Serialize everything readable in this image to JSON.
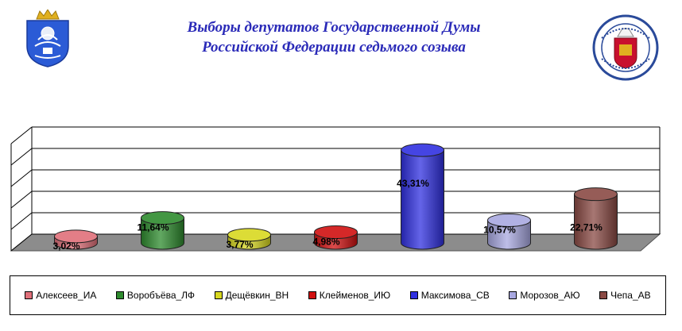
{
  "header": {
    "title_line1": "Выборы депутатов Государственной Думы",
    "title_line2": "Российской Федерации седьмого созыва"
  },
  "emblems": {
    "left": "coat-of-arms-icon",
    "right": "election-commission-seal-icon"
  },
  "chart_data": {
    "type": "bar",
    "style": "3d-cylinder",
    "categories": [
      "Алексеев_ИА",
      "Воробъёва_ЛФ",
      "Дещёвкин_ВН",
      "Клейменов_ИЮ",
      "Максимова_СВ",
      "Морозов_АЮ",
      "Чепа_АВ"
    ],
    "values": [
      3.02,
      11.64,
      3.77,
      4.98,
      43.31,
      10.57,
      22.71
    ],
    "value_labels": [
      "3,02%",
      "11,64%",
      "3,77%",
      "4,98%",
      "43,31%",
      "10,57%",
      "22,71%"
    ],
    "colors": [
      "#e0707a",
      "#2e8b2e",
      "#d8d820",
      "#d01010",
      "#3030e0",
      "#a8a8e0",
      "#8a4a44"
    ],
    "ylim": [
      0,
      50
    ],
    "grid": true,
    "legend": "bottom"
  }
}
